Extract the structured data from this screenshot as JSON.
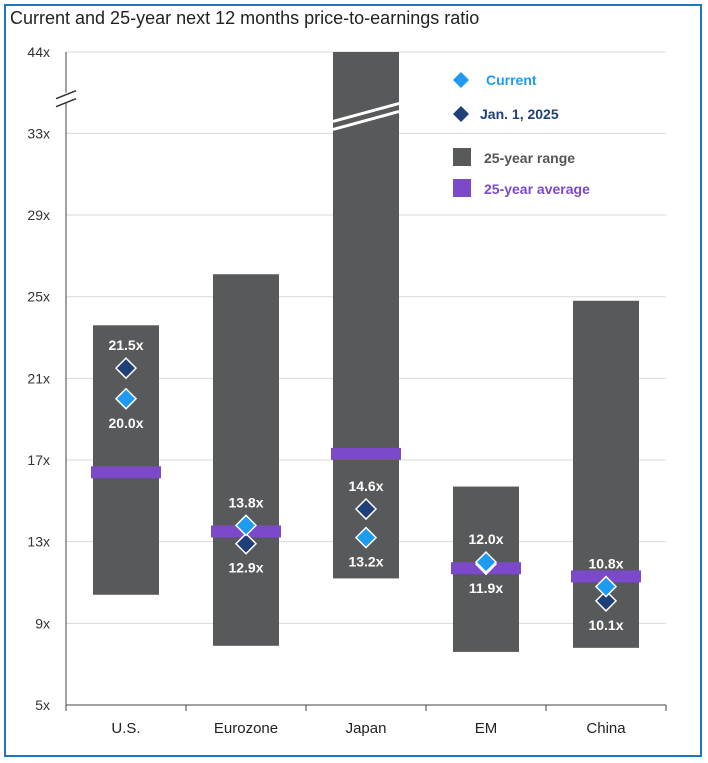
{
  "chart_data": {
    "type": "range",
    "title": "Current and 25-year next 12 months price-to-earnings ratio",
    "y_ticks": [
      "5x",
      "9x",
      "13x",
      "17x",
      "21x",
      "25x",
      "29x",
      "33x",
      "44x"
    ],
    "ylim": [
      5,
      44
    ],
    "axis_break": "between 33x and 44x",
    "categories": [
      "U.S.",
      "Eurozone",
      "Japan",
      "EM",
      "China"
    ],
    "series": [
      {
        "name": "25-year range",
        "low": [
          10.4,
          7.9,
          11.2,
          7.6,
          7.8
        ],
        "high": [
          23.6,
          26.1,
          44.0,
          15.7,
          24.8
        ]
      },
      {
        "name": "25-year average",
        "values": [
          16.4,
          13.5,
          17.3,
          11.7,
          11.3
        ]
      },
      {
        "name": "Current",
        "values": [
          20.0,
          13.8,
          13.2,
          12.0,
          10.8
        ]
      },
      {
        "name": "Jan. 1, 2025",
        "values": [
          21.5,
          12.9,
          14.6,
          11.9,
          10.1
        ]
      }
    ],
    "current_labels": [
      "20.0x",
      "13.8x",
      "13.2x",
      "12.0x",
      "10.8x"
    ],
    "jan_labels": [
      "21.5x",
      "12.9x",
      "14.6x",
      "11.9x",
      "10.1x"
    ],
    "legend": [
      "Current",
      "Jan. 1, 2025",
      "25-year range",
      "25-year average"
    ],
    "legend_position": "top-right",
    "colors": {
      "range": "#58595b",
      "average": "#7b49c9",
      "current": "#1e9bf0",
      "jan": "#1f3f78",
      "current_text": "#1e9bf0",
      "jan_text": "#1f3f78",
      "average_text": "#7b49c9",
      "frame": "#1b76c4",
      "grid": "#d9d9d9"
    }
  }
}
